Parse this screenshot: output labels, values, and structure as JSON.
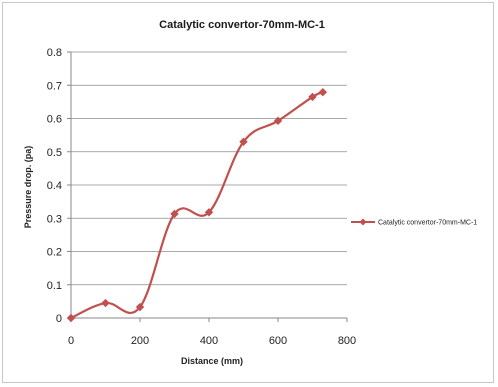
{
  "chart_data": {
    "type": "line",
    "title": "Catalytic convertor-70mm-MC-1",
    "xlabel": "Distance (mm)",
    "ylabel": "Pressure drop. (pa)",
    "xlim": [
      0,
      800
    ],
    "ylim": [
      0,
      0.8
    ],
    "x_ticks": [
      "0",
      "200",
      "400",
      "600",
      "800"
    ],
    "y_ticks": [
      "0",
      "0.1",
      "0.2",
      "0.3",
      "0.4",
      "0.5",
      "0.6",
      "0.7",
      "0.8"
    ],
    "grid": "horizontal",
    "legend_position": "right",
    "series": [
      {
        "name": "Catalytic convertor-70mm-MC-1",
        "color": "#c0504d",
        "marker": "diamond",
        "smooth": true,
        "x": [
          0,
          100,
          200,
          300,
          400,
          500,
          600,
          700,
          730
        ],
        "values": [
          0,
          0.045,
          0.033,
          0.313,
          0.318,
          0.53,
          0.593,
          0.665,
          0.679
        ]
      }
    ]
  }
}
